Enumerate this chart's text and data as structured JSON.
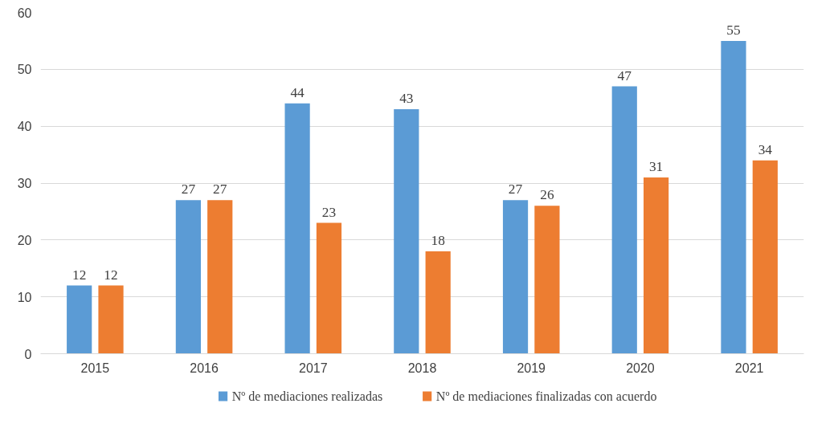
{
  "chart_data": {
    "type": "bar",
    "categories": [
      "2015",
      "2016",
      "2017",
      "2018",
      "2019",
      "2020",
      "2021"
    ],
    "series": [
      {
        "name": "Nº de mediaciones realizadas",
        "color": "#5b9bd5",
        "values": [
          12,
          27,
          44,
          43,
          27,
          47,
          55
        ]
      },
      {
        "name": "Nº de mediaciones finalizadas con acuerdo",
        "color": "#ed7d31",
        "values": [
          12,
          27,
          23,
          18,
          26,
          31,
          34
        ]
      }
    ],
    "ylim": [
      0,
      60
    ],
    "yticks": [
      0,
      10,
      20,
      30,
      40,
      50,
      60
    ],
    "grid": "y",
    "legend": "bottom",
    "data_labels": true
  }
}
